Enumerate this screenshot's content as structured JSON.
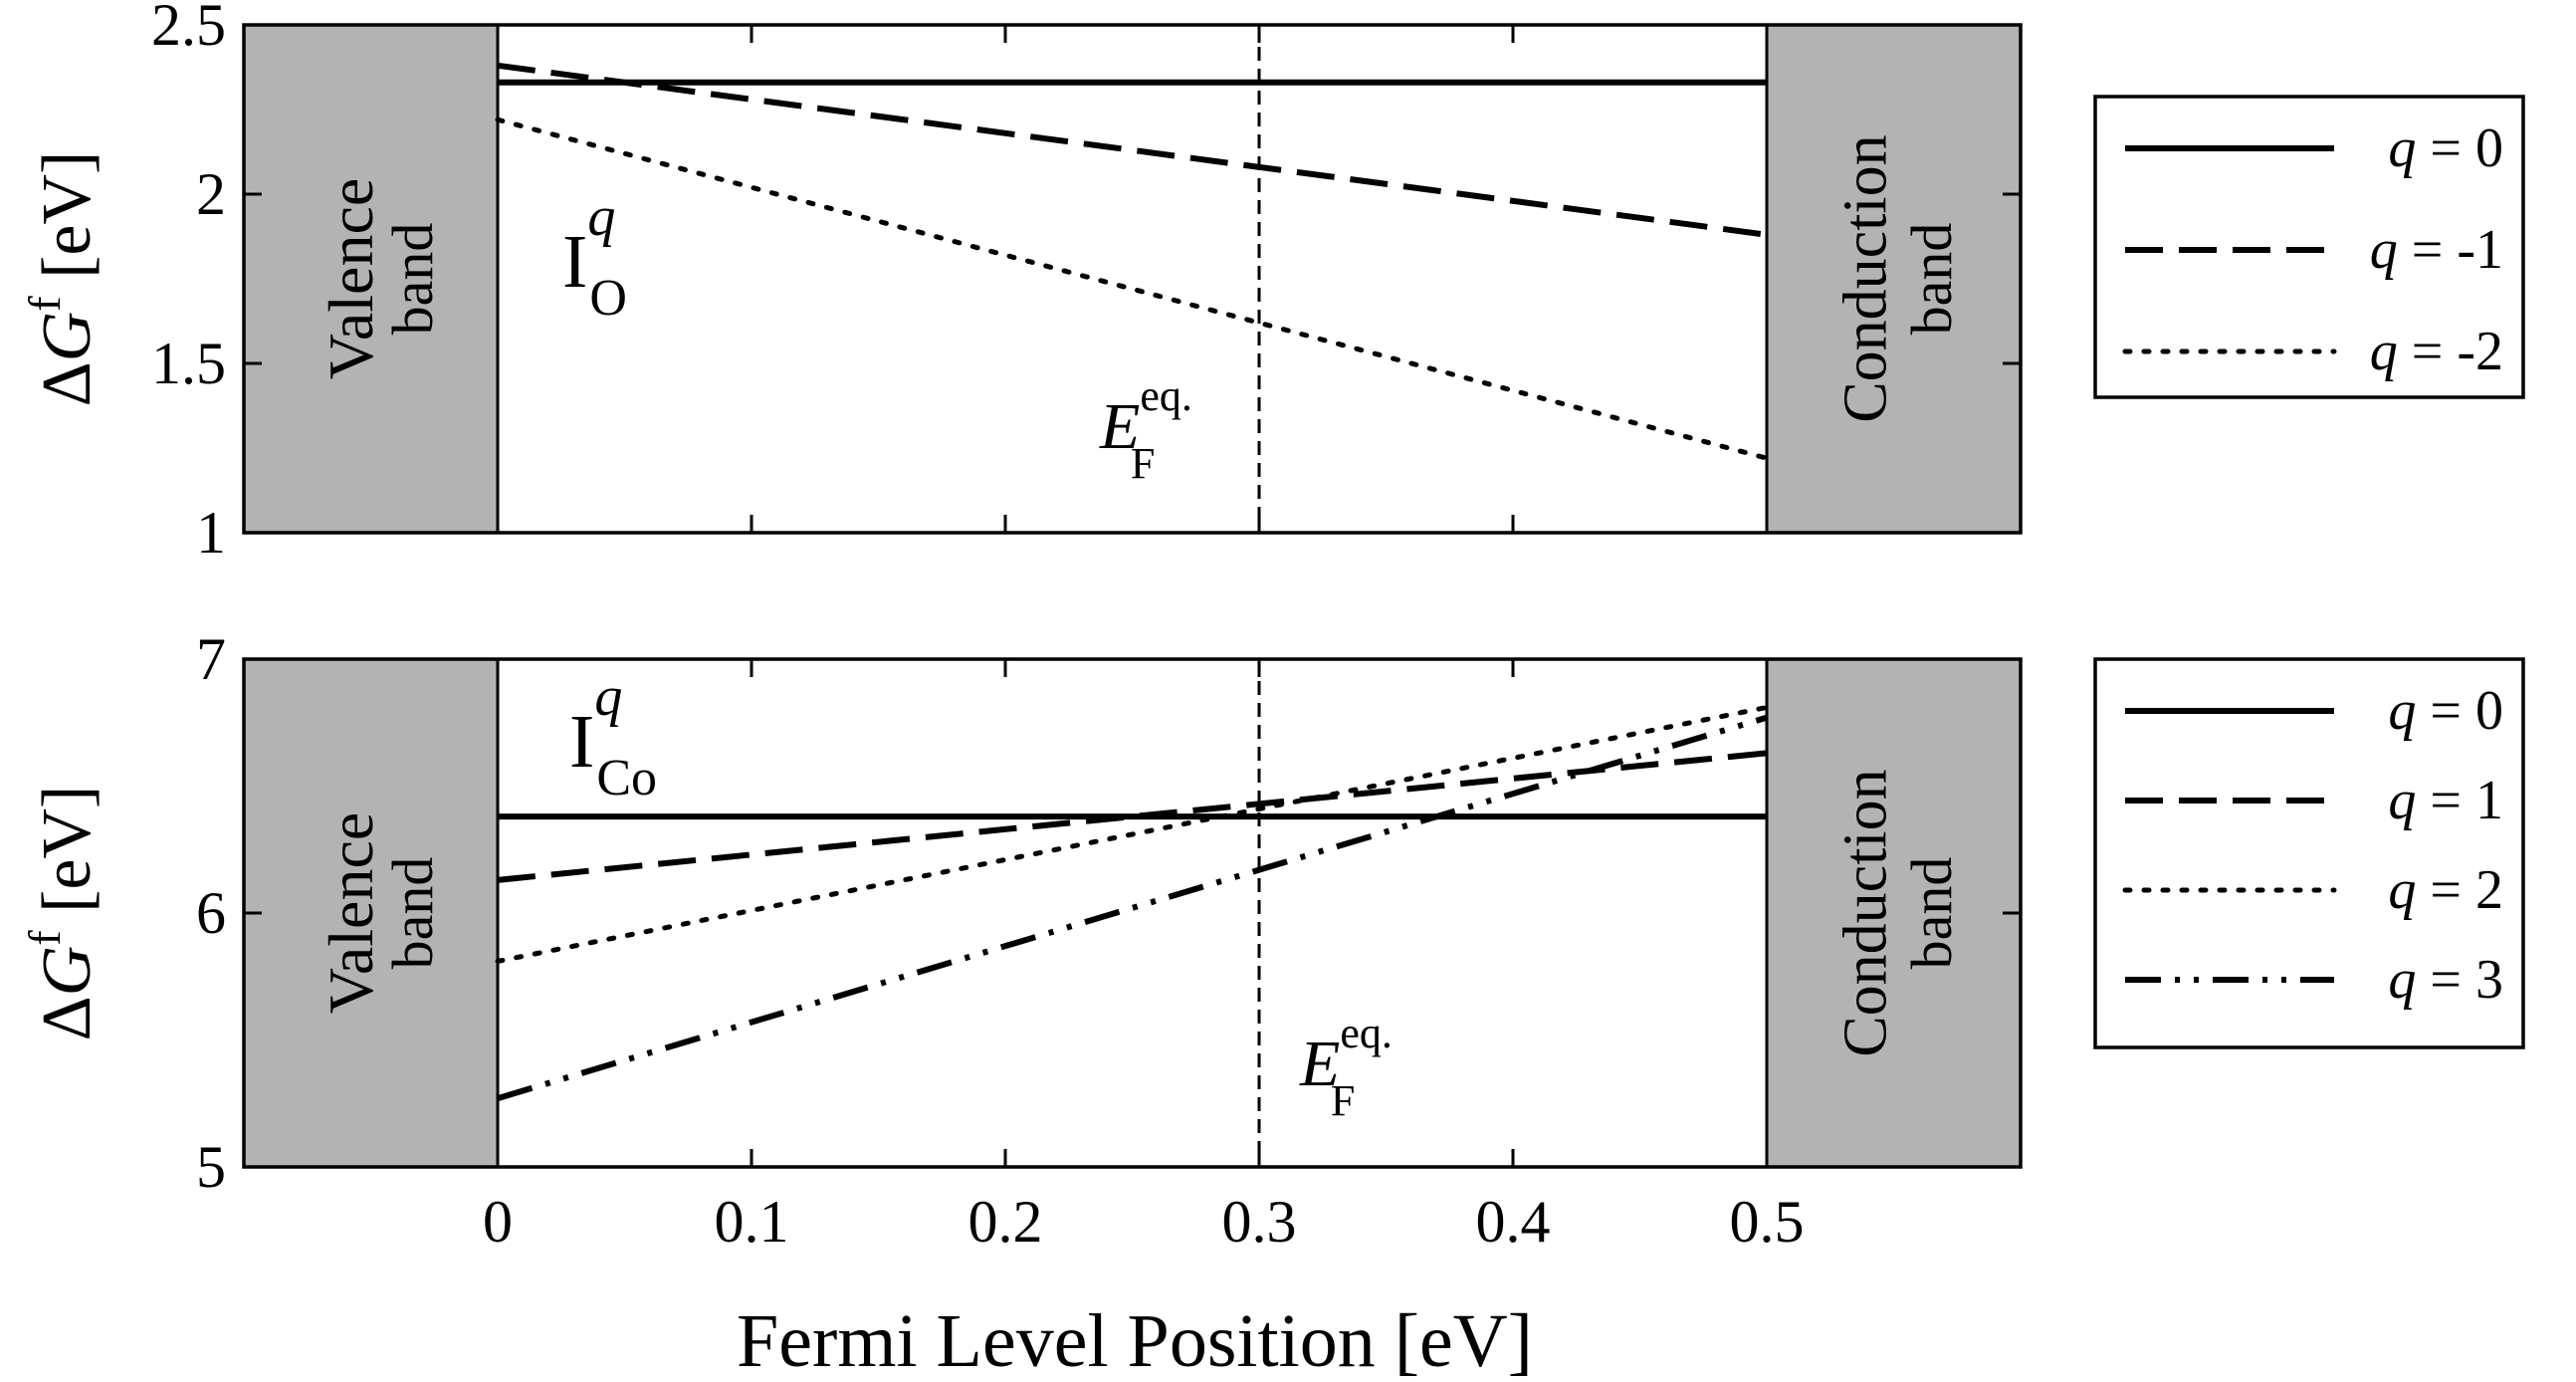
{
  "figure": {
    "xlabel": "Fermi Level Position [eV]",
    "x_ticks": [
      "0",
      "0.1",
      "0.2",
      "0.3",
      "0.4",
      "0.5"
    ],
    "band_labels": {
      "valence_line1": "Valence",
      "valence_line2": "band",
      "conduction_line1": "Conduction",
      "conduction_line2": "band"
    },
    "fermi_label": {
      "main": "E",
      "sub": "F",
      "sup": "eq."
    },
    "band_color": "#b3b3b3"
  },
  "chart_data": [
    {
      "type": "line",
      "panel": "top",
      "annotation": {
        "main": "I",
        "sub": "O",
        "sup": "q"
      },
      "ylabel": {
        "main": "ΔG",
        "sup": "f",
        "unit": " [eV]"
      },
      "xlim": [
        -0.1,
        0.6
      ],
      "ylim": [
        1,
        2.5
      ],
      "y_ticks": [
        "1",
        "1.5",
        "2",
        "2.5"
      ],
      "grid": false,
      "legend_position": "right",
      "valence_band_max": 0,
      "conduction_band_min": 0.5,
      "fermi_level_eq": 0.3,
      "series": [
        {
          "name": "q = 0",
          "style": "solid",
          "x": [
            0,
            0.5
          ],
          "y": [
            2.33,
            2.33
          ]
        },
        {
          "name": "q = -1",
          "style": "dashed",
          "x": [
            0,
            0.5
          ],
          "y": [
            2.38,
            1.88
          ]
        },
        {
          "name": "q = -2",
          "style": "dotted",
          "x": [
            0,
            0.5
          ],
          "y": [
            2.22,
            1.22
          ]
        }
      ]
    },
    {
      "type": "line",
      "panel": "bottom",
      "annotation": {
        "main": "I",
        "sub": "Co",
        "sup": "q"
      },
      "ylabel": {
        "main": "ΔG",
        "sup": "f",
        "unit": " [eV]"
      },
      "xlim": [
        -0.1,
        0.6
      ],
      "ylim": [
        5,
        7
      ],
      "y_ticks": [
        "5",
        "6",
        "7"
      ],
      "grid": false,
      "legend_position": "right",
      "valence_band_max": 0,
      "conduction_band_min": 0.5,
      "fermi_level_eq": 0.3,
      "series": [
        {
          "name": "q = 0",
          "style": "solid",
          "x": [
            0,
            0.5
          ],
          "y": [
            6.38,
            6.38
          ]
        },
        {
          "name": "q = 1",
          "style": "dashed",
          "x": [
            0,
            0.5
          ],
          "y": [
            6.13,
            6.63
          ]
        },
        {
          "name": "q = 2",
          "style": "dotted",
          "x": [
            0,
            0.5
          ],
          "y": [
            5.81,
            6.81
          ]
        },
        {
          "name": "q = 3",
          "style": "dashdot",
          "x": [
            0,
            0.5
          ],
          "y": [
            5.27,
            6.77
          ]
        }
      ]
    }
  ]
}
